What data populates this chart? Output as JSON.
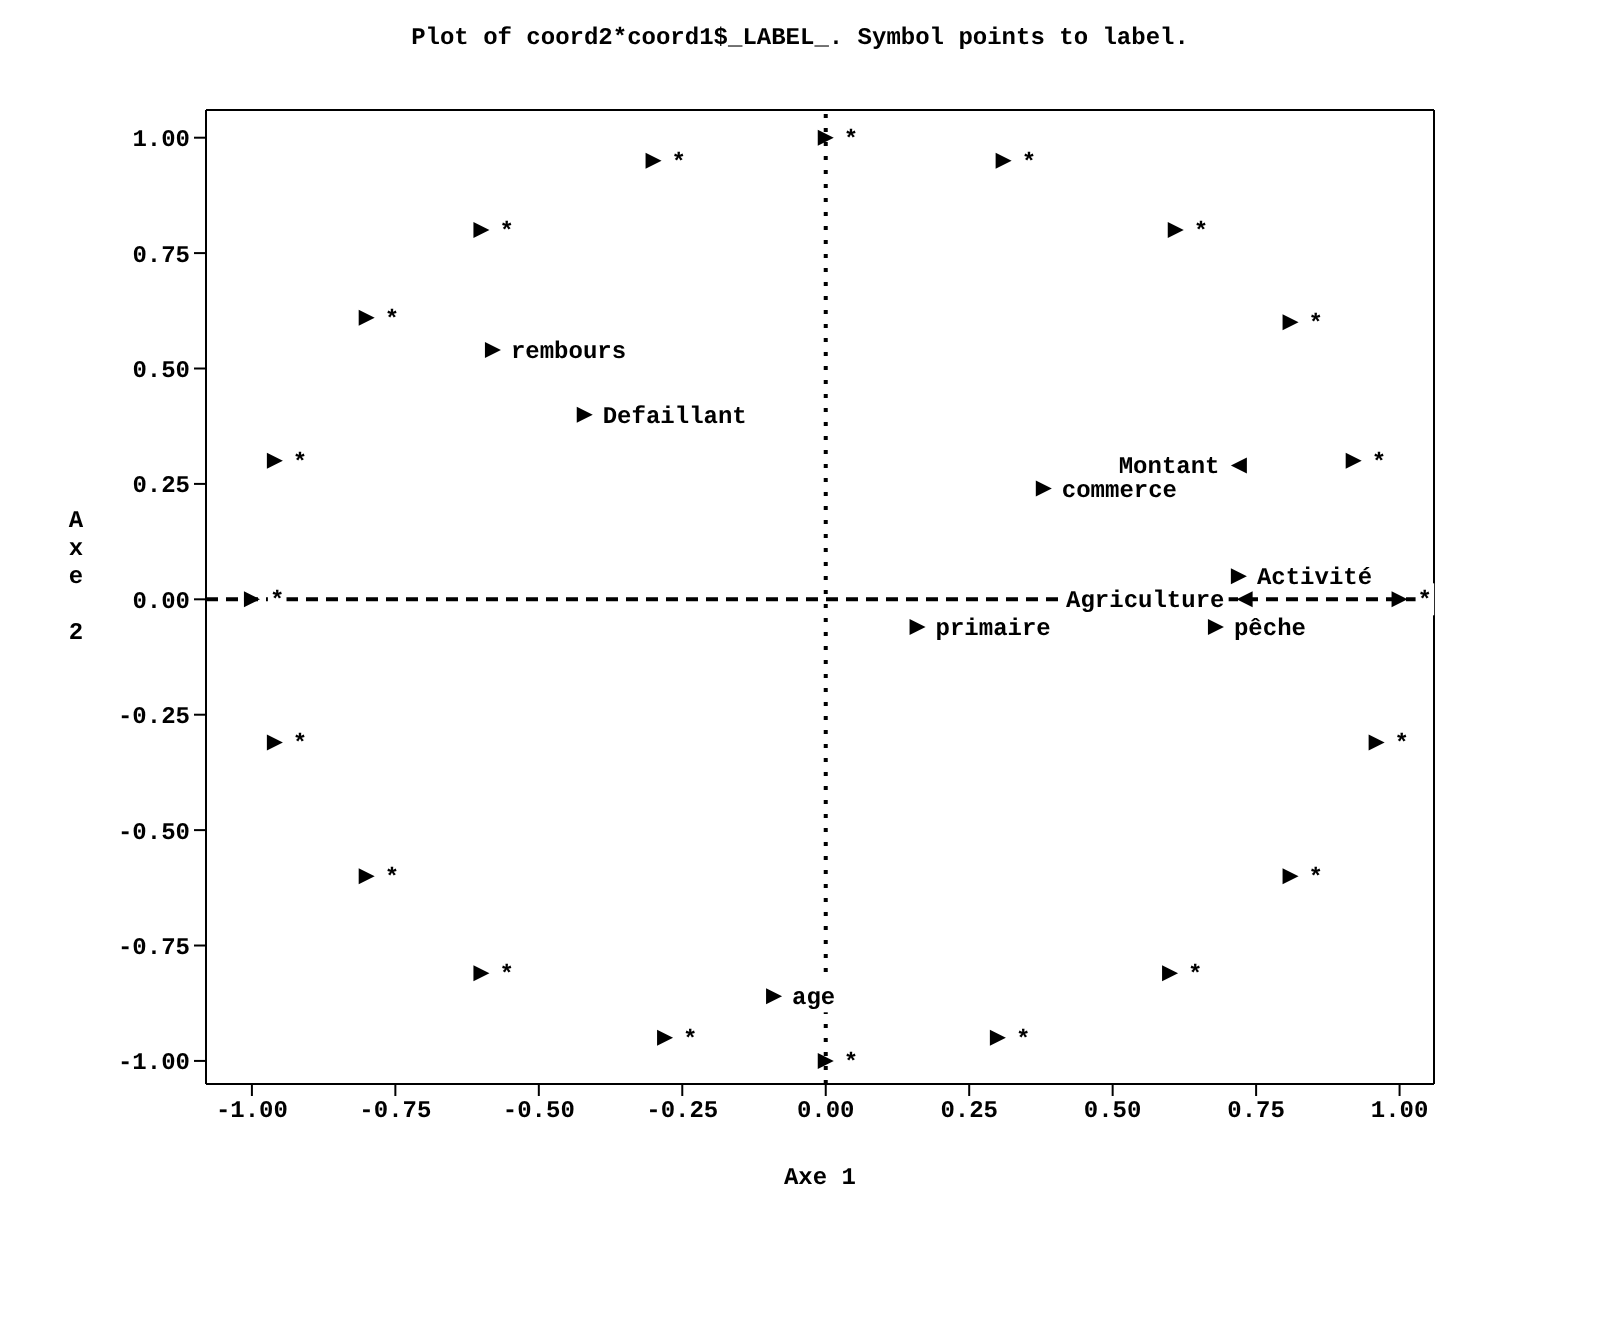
{
  "chart_data": {
    "type": "scatter",
    "title": "Plot of coord2*coord1$_LABEL_.  Symbol points to label.",
    "xlabel": "Axe 1",
    "ylabel": "Axe 2",
    "series": [
      {
        "color": "#000000",
        "x": [
          -0.96,
          -0.8,
          -0.6,
          -0.3,
          0.0,
          0.31,
          0.61,
          0.81,
          0.92,
          1.0,
          -1.0,
          0.96,
          0.81,
          0.6,
          0.3,
          0.0,
          -0.28,
          -0.6,
          -0.8,
          -0.96,
          0.72,
          0.68,
          0.16,
          0.38,
          -0.58,
          -0.42,
          -0.09
        ],
        "values": [
          0.3,
          0.61,
          0.8,
          0.95,
          1.0,
          0.95,
          0.8,
          0.6,
          0.3,
          0.0,
          0.0,
          -0.31,
          -0.6,
          -0.81,
          -0.95,
          -1.0,
          -0.95,
          -0.81,
          -0.6,
          -0.31,
          0.05,
          -0.06,
          -0.06,
          0.24,
          0.54,
          0.4,
          -0.86
        ],
        "value_labels": [
          "*",
          "*",
          "*",
          "*",
          "*",
          "*",
          "*",
          "*",
          "*",
          "*",
          "*",
          "*",
          "*",
          "*",
          "*",
          "*",
          "*",
          "*",
          "*",
          "*",
          "Activité",
          "pêche",
          "primaire",
          "commerce",
          "rembours",
          "Defaillant",
          "age"
        ]
      },
      {
        "color": "#000000",
        "x": [
          0.72,
          0.73
        ],
        "values": [
          0.29,
          0.0
        ],
        "value_labels": [
          "Montant",
          "Agriculture"
        ]
      }
    ],
    "xlim": [
      -1.08,
      1.06
    ],
    "ylim": [
      -1.05,
      1.06
    ],
    "xticks": [
      {
        "value": -1,
        "label": "-1.00"
      },
      {
        "value": -0.75,
        "label": "-0.75"
      },
      {
        "value": -0.5,
        "label": "-0.50"
      },
      {
        "value": -0.25,
        "label": "-0.25"
      },
      {
        "value": 0,
        "label": "0.00"
      },
      {
        "value": 0.25,
        "label": "0.25"
      },
      {
        "value": 0.5,
        "label": "0.50"
      },
      {
        "value": 0.75,
        "label": "0.75"
      },
      {
        "value": 1,
        "label": "1.00"
      }
    ],
    "yticks": [
      {
        "value": -1,
        "label": "-1.00"
      },
      {
        "value": -0.75,
        "label": "-0.75"
      },
      {
        "value": -0.5,
        "label": "-0.50"
      },
      {
        "value": -0.25,
        "label": "-0.25"
      },
      {
        "value": 0,
        "label": "0.00"
      },
      {
        "value": 0.25,
        "label": "0.25"
      },
      {
        "value": 0.5,
        "label": "0.50"
      },
      {
        "value": 0.75,
        "label": "0.75"
      },
      {
        "value": 1,
        "label": "1.00"
      }
    ],
    "ref_lines": [
      {
        "axis": "x",
        "value": 0,
        "line_style": "dotted"
      },
      {
        "axis": "y",
        "value": 0,
        "line_style": "dashed"
      }
    ],
    "grid": false,
    "legend": false,
    "marker": "triangle"
  }
}
